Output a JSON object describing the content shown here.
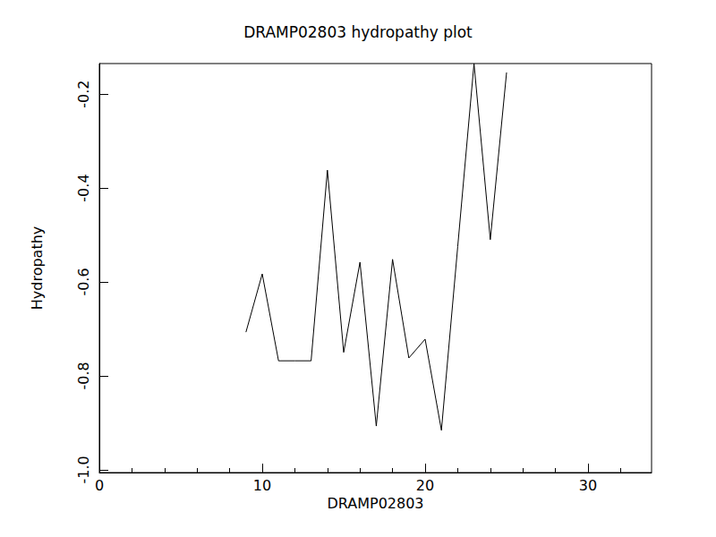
{
  "chart_data": {
    "type": "line",
    "title": "DRAMP02803 hydropathy plot",
    "x_label": "DRAMP02803",
    "y_label": "Hydropathy",
    "x": [
      9,
      10,
      11,
      12,
      13,
      14,
      15,
      16,
      17,
      18,
      19,
      20,
      21,
      22,
      23,
      24,
      25
    ],
    "values": [
      -0.707,
      -0.583,
      -0.768,
      -0.768,
      -0.768,
      -0.362,
      -0.75,
      -0.558,
      -0.907,
      -0.552,
      -0.762,
      -0.722,
      -0.916,
      -0.525,
      -0.135,
      -0.51,
      -0.154
    ],
    "color": "#000000",
    "xlim": [
      0,
      33.9
    ],
    "xticks": [
      0,
      10,
      20,
      30
    ],
    "ylim": [
      -1.006,
      -0.135
    ],
    "yticks": [
      {
        "value": -1,
        "label": "-1.0"
      },
      -0.8,
      -0.6,
      -0.4,
      -0.2
    ],
    "grid": false
  }
}
